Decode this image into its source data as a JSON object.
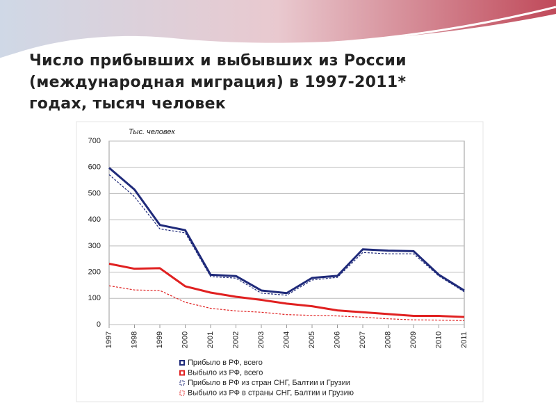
{
  "chart_data": {
    "type": "line",
    "title": "Число прибывших и выбывших из России\n(международная миграция) в 1997-2011*\nгодах, тысяч человек",
    "y_label": "Тыс. человек",
    "categories": [
      "1997",
      "1998",
      "1999",
      "2000",
      "2001",
      "2002",
      "2003",
      "2004",
      "2005",
      "2006",
      "2007",
      "2008",
      "2009",
      "2010",
      "2011"
    ],
    "series": [
      {
        "name": "Прибыло в РФ, всего",
        "color": "#1f2a7a",
        "dashed": false,
        "values": [
          598,
          515,
          380,
          360,
          190,
          185,
          130,
          120,
          178,
          186,
          287,
          282,
          280,
          190,
          130
        ]
      },
      {
        "name": "Выбыло из РФ, всего",
        "color": "#e02020",
        "dashed": false,
        "values": [
          232,
          213,
          215,
          146,
          122,
          106,
          94,
          80,
          70,
          54,
          47,
          40,
          33,
          33,
          29
        ]
      },
      {
        "name": "Прибыло в РФ из стран СНГ, Балтии и Грузии",
        "color": "#1f2a7a",
        "dashed": true,
        "values": [
          572,
          488,
          365,
          350,
          183,
          177,
          120,
          112,
          170,
          180,
          275,
          270,
          270,
          185,
          125
        ]
      },
      {
        "name": "Выбыло из РФ в страны СНГ, Балтии и Грузию",
        "color": "#e02020",
        "dashed": true,
        "values": [
          148,
          132,
          130,
          85,
          62,
          52,
          47,
          38,
          35,
          33,
          28,
          22,
          18,
          17,
          15
        ]
      }
    ],
    "ylim": [
      0,
      700
    ],
    "yticks": [
      0,
      100,
      200,
      300,
      400,
      500,
      600,
      700
    ],
    "grid": true
  }
}
